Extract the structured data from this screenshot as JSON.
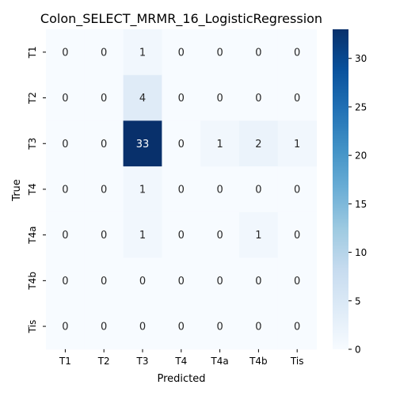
{
  "chart_data": {
    "type": "heatmap",
    "title": "Colon_SELECT_MRMR_16_LogisticRegression",
    "xlabel": "Predicted",
    "ylabel": "True",
    "x_categories": [
      "T1",
      "T2",
      "T3",
      "T4",
      "T4a",
      "T4b",
      "Tis"
    ],
    "y_categories": [
      "T1",
      "T2",
      "T3",
      "T4",
      "T4a",
      "T4b",
      "Tis"
    ],
    "values": [
      [
        0,
        0,
        1,
        0,
        0,
        0,
        0
      ],
      [
        0,
        0,
        4,
        0,
        0,
        0,
        0
      ],
      [
        0,
        0,
        33,
        0,
        1,
        2,
        1
      ],
      [
        0,
        0,
        1,
        0,
        0,
        0,
        0
      ],
      [
        0,
        0,
        1,
        0,
        0,
        1,
        0
      ],
      [
        0,
        0,
        0,
        0,
        0,
        0,
        0
      ],
      [
        0,
        0,
        0,
        0,
        0,
        0,
        0
      ]
    ],
    "colorbar": {
      "colormap": "Blues",
      "vmin": 0,
      "vmax": 33,
      "ticks": [
        0,
        5,
        10,
        15,
        20,
        25,
        30
      ]
    }
  }
}
